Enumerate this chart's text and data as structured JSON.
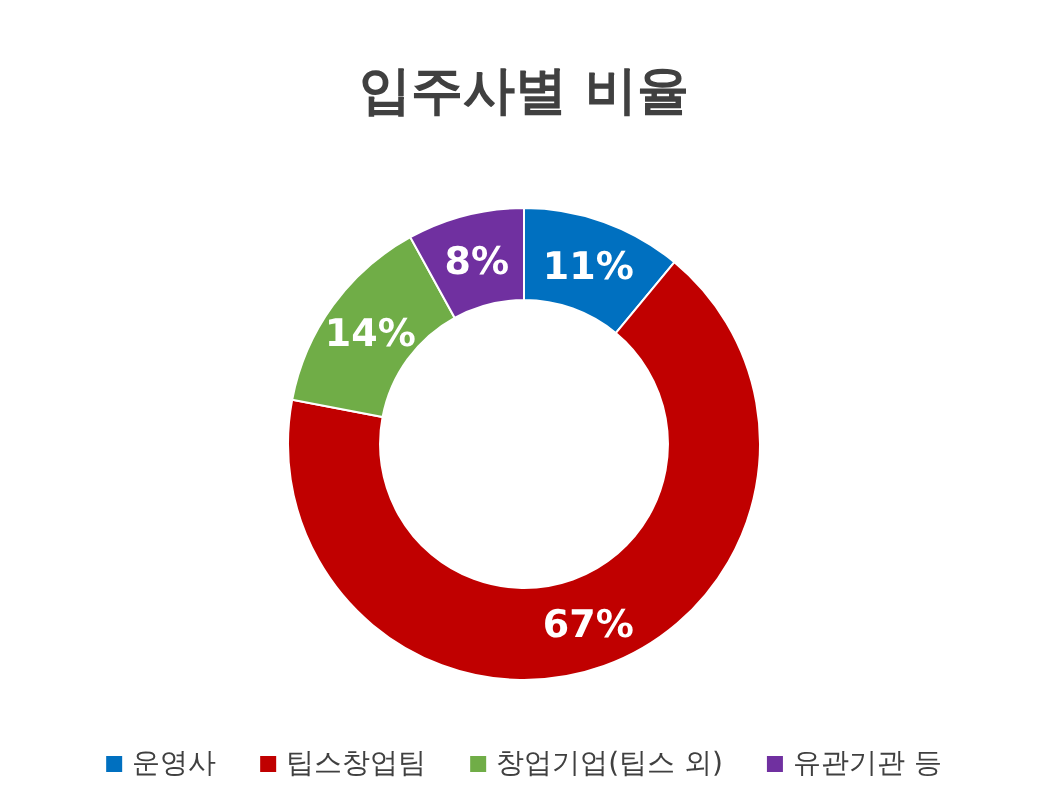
{
  "chart_data": {
    "type": "donut",
    "title": "입주사별 비율",
    "categories": [
      "운영사",
      "팁스창업팀",
      "창업기업(팁스 외)",
      "유관기관 등"
    ],
    "values": [
      11,
      67,
      14,
      8
    ],
    "value_labels": [
      "11%",
      "67%",
      "14%",
      "8%"
    ],
    "colors": [
      "#0070c0",
      "#c00000",
      "#70ad47",
      "#7030a0"
    ],
    "legend": "bottom"
  }
}
